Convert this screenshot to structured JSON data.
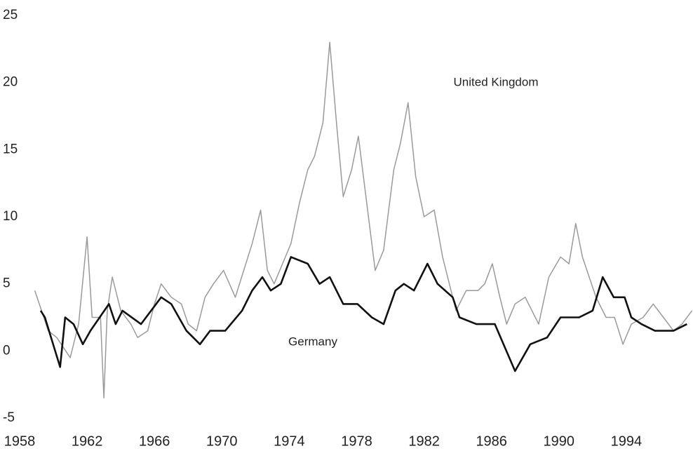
{
  "chart_data": {
    "type": "line",
    "annotations": [
      "United Kingdom",
      "Germany"
    ],
    "series": [
      {
        "name": "United Kingdom",
        "color": "#9a9a9a",
        "width": 1.5,
        "x": [
          1958.9,
          1959.3,
          1959.7,
          1960.2,
          1961.0,
          1961.5,
          1962.0,
          1962.3,
          1962.8,
          1963.0,
          1963.2,
          1963.5,
          1964.0,
          1964.6,
          1965.0,
          1965.6,
          1966.0,
          1966.4,
          1967.0,
          1967.6,
          1968.0,
          1968.5,
          1969.0,
          1969.5,
          1970.1,
          1970.8,
          1971.3,
          1971.8,
          1972.3,
          1972.7,
          1973.1,
          1973.6,
          1974.1,
          1974.6,
          1975.1,
          1975.5,
          1976.0,
          1976.4,
          1976.8,
          1977.2,
          1977.7,
          1978.1,
          1978.6,
          1979.1,
          1979.6,
          1980.2,
          1980.6,
          1981.05,
          1981.5,
          1982.0,
          1982.6,
          1983.1,
          1983.9,
          1984.5,
          1985.2,
          1985.6,
          1986.05,
          1986.5,
          1986.9,
          1987.4,
          1988.0,
          1988.8,
          1989.4,
          1990.1,
          1990.6,
          1991.0,
          1991.4,
          1992.2,
          1992.8,
          1993.3,
          1993.8,
          1994.3,
          1995.0,
          1995.6,
          1996.2,
          1996.8,
          1997.3,
          1997.9
        ],
        "values": [
          4.5,
          3,
          1.5,
          1,
          -0.5,
          2,
          8.5,
          2.5,
          2.5,
          -3.5,
          3,
          5.5,
          3,
          2,
          1,
          1.5,
          3.5,
          5,
          4,
          3.5,
          2,
          1.5,
          4,
          5,
          6,
          4,
          6,
          8,
          10.5,
          6,
          5,
          6.5,
          8,
          11,
          13.5,
          14.5,
          17,
          23,
          17,
          11.5,
          13.5,
          16,
          11,
          6,
          7.5,
          13.5,
          15.5,
          18.5,
          13,
          10,
          10.5,
          7,
          3,
          4.5,
          4.5,
          5,
          6.5,
          4,
          2,
          3.5,
          4,
          2,
          5.5,
          7,
          6.5,
          9.5,
          7,
          4,
          2.5,
          2.5,
          0.5,
          2,
          2.5,
          3.5,
          2.5,
          1.5,
          2,
          3
        ]
      },
      {
        "name": "Germany",
        "color": "#111111",
        "width": 2.6,
        "x": [
          1959.25,
          1959.5,
          1960.4,
          1960.7,
          1961.2,
          1961.75,
          1962.2,
          1963.3,
          1963.7,
          1964.1,
          1965.2,
          1966.4,
          1967.0,
          1967.9,
          1968.7,
          1969.3,
          1970.2,
          1971.2,
          1971.8,
          1972.4,
          1972.9,
          1973.5,
          1974.1,
          1975.1,
          1975.8,
          1976.4,
          1977.2,
          1978.05,
          1978.9,
          1979.6,
          1980.3,
          1980.8,
          1981.4,
          1982.2,
          1982.8,
          1983.7,
          1984.1,
          1985.1,
          1986.2,
          1987.4,
          1988.3,
          1989.3,
          1990.1,
          1991.2,
          1992.0,
          1992.6,
          1993.25,
          1993.9,
          1994.3,
          1994.9,
          1995.7,
          1996.8,
          1997.6
        ],
        "values": [
          3,
          2.5,
          -1.2,
          2.5,
          2,
          0.5,
          1.5,
          3.5,
          2,
          3,
          2,
          4,
          3.5,
          1.5,
          0.5,
          1.5,
          1.5,
          3,
          4.5,
          5.5,
          4.5,
          5,
          7,
          6.5,
          5,
          5.5,
          3.5,
          3.5,
          2.5,
          2,
          4.5,
          5,
          4.5,
          6.5,
          5,
          4,
          2.5,
          2,
          2,
          -1.5,
          0.5,
          1,
          2.5,
          2.5,
          3,
          5.5,
          4,
          4,
          2.5,
          2,
          1.5,
          1.5,
          2
        ]
      }
    ],
    "xlim": [
      1958,
      1998
    ],
    "xticks": [
      1958,
      1962,
      1966,
      1970,
      1974,
      1978,
      1982,
      1986,
      1990,
      1994
    ],
    "ylim": [
      -5,
      25
    ],
    "yticks": [
      -5,
      0,
      5,
      10,
      15,
      20,
      25
    ],
    "grid": false
  }
}
